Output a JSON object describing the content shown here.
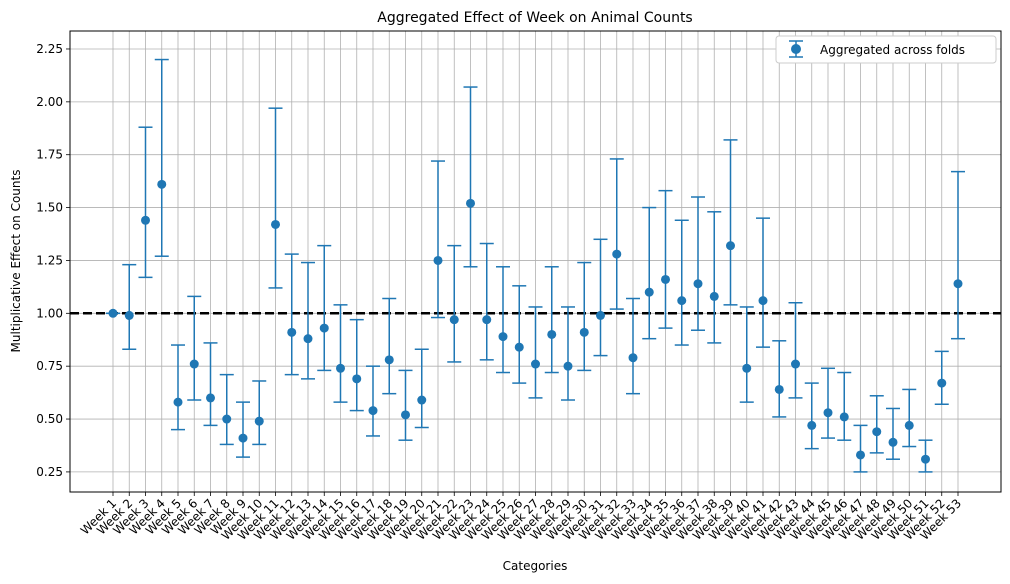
{
  "chart_data": {
    "type": "scatter",
    "title": "Aggregated Effect of Week on Animal Counts",
    "xlabel": "Categories",
    "ylabel": "Multiplicative Effect on Counts",
    "ylim": [
      0.155,
      2.335
    ],
    "yticks": [
      0.25,
      0.5,
      0.75,
      1.0,
      1.25,
      1.5,
      1.75,
      2.0,
      2.25
    ],
    "ytick_labels": [
      "0.25",
      "0.50",
      "0.75",
      "1.00",
      "1.25",
      "1.50",
      "1.75",
      "2.00",
      "2.25"
    ],
    "grid": true,
    "legend_position": "top-right",
    "reference_line": 1.0,
    "colors": {
      "series": "#1f77b4",
      "reference": "#000000",
      "grid": "#b0b0b0"
    },
    "categories": [
      "Week 1",
      "Week 2",
      "Week 3",
      "Week 4",
      "Week 5",
      "Week 6",
      "Week 7",
      "Week 8",
      "Week 9",
      "Week 10",
      "Week 11",
      "Week 12",
      "Week 13",
      "Week 14",
      "Week 15",
      "Week 16",
      "Week 17",
      "Week 18",
      "Week 19",
      "Week 20",
      "Week 21",
      "Week 22",
      "Week 23",
      "Week 24",
      "Week 25",
      "Week 26",
      "Week 27",
      "Week 28",
      "Week 29",
      "Week 30",
      "Week 31",
      "Week 32",
      "Week 33",
      "Week 34",
      "Week 35",
      "Week 36",
      "Week 37",
      "Week 38",
      "Week 39",
      "Week 40",
      "Week 41",
      "Week 42",
      "Week 43",
      "Week 44",
      "Week 45",
      "Week 46",
      "Week 47",
      "Week 48",
      "Week 49",
      "Week 50",
      "Week 51",
      "Week 52",
      "Week 53"
    ],
    "series": [
      {
        "name": "Aggregated across folds",
        "values": [
          1.0,
          0.99,
          1.44,
          1.61,
          0.58,
          0.76,
          0.6,
          0.5,
          0.41,
          0.49,
          1.42,
          0.91,
          0.88,
          0.93,
          0.74,
          0.69,
          0.54,
          0.78,
          0.52,
          0.59,
          1.25,
          0.97,
          1.52,
          0.97,
          0.89,
          0.84,
          0.76,
          0.9,
          0.75,
          0.91,
          0.99,
          1.28,
          0.79,
          1.1,
          1.16,
          1.06,
          1.14,
          1.08,
          1.32,
          0.74,
          1.06,
          0.64,
          0.76,
          0.47,
          0.53,
          0.51,
          0.33,
          0.44,
          0.39,
          0.47,
          0.31,
          0.67,
          1.14
        ],
        "lower": [
          1.0,
          0.83,
          1.17,
          1.27,
          0.45,
          0.59,
          0.47,
          0.38,
          0.32,
          0.38,
          1.12,
          0.71,
          0.69,
          0.73,
          0.58,
          0.54,
          0.42,
          0.62,
          0.4,
          0.46,
          0.98,
          0.77,
          1.22,
          0.78,
          0.72,
          0.67,
          0.6,
          0.72,
          0.59,
          0.73,
          0.8,
          1.02,
          0.62,
          0.88,
          0.93,
          0.85,
          0.92,
          0.86,
          1.04,
          0.58,
          0.84,
          0.51,
          0.6,
          0.36,
          0.41,
          0.4,
          0.25,
          0.34,
          0.31,
          0.37,
          0.25,
          0.57,
          0.88
        ],
        "upper": [
          1.0,
          1.23,
          1.88,
          2.2,
          0.85,
          1.08,
          0.86,
          0.71,
          0.58,
          0.68,
          1.97,
          1.28,
          1.24,
          1.32,
          1.04,
          0.97,
          0.75,
          1.07,
          0.73,
          0.83,
          1.72,
          1.32,
          2.07,
          1.33,
          1.22,
          1.13,
          1.03,
          1.22,
          1.03,
          1.24,
          1.35,
          1.73,
          1.07,
          1.5,
          1.58,
          1.44,
          1.55,
          1.48,
          1.82,
          1.03,
          1.45,
          0.87,
          1.05,
          0.67,
          0.74,
          0.72,
          0.47,
          0.61,
          0.55,
          0.64,
          0.4,
          0.82,
          1.67
        ]
      }
    ]
  }
}
